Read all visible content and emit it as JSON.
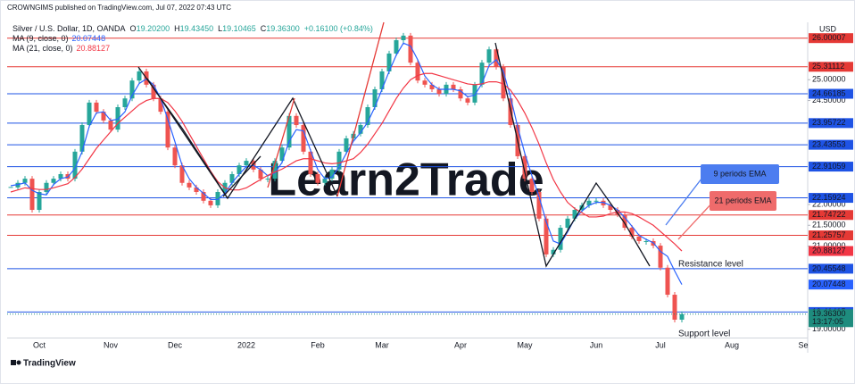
{
  "header": {
    "publisher": "CROWNGIMS published on TradingView.com, Jul 07, 2022 07:43 UTC",
    "currency": "USD"
  },
  "legend": {
    "ohlc": [
      {
        "key": "O",
        "value": "19.20200"
      },
      {
        "key": "H",
        "value": "19.43450"
      },
      {
        "key": "L",
        "value": "19.10465"
      },
      {
        "key": "C",
        "value": "19.36300"
      }
    ],
    "change": "+0.16100 (+0.84%)"
  },
  "chart_data": {
    "type": "candlestick",
    "watermark": "Learn2Trade",
    "categories": [
      null,
      null,
      null,
      null,
      "Oct",
      null,
      null,
      null,
      null,
      null,
      null,
      null,
      null,
      null,
      "Nov",
      null,
      null,
      null,
      null,
      null,
      null,
      null,
      null,
      "Dec",
      null,
      null,
      null,
      null,
      null,
      null,
      null,
      null,
      null,
      "2022",
      null,
      null,
      null,
      null,
      null,
      null,
      null,
      null,
      null,
      "Feb",
      null,
      null,
      null,
      null,
      null,
      null,
      null,
      null,
      "Mar",
      null,
      null,
      null,
      null,
      null,
      null,
      null,
      null,
      null,
      null,
      "Apr",
      null,
      null,
      null,
      null,
      null,
      null,
      null,
      null,
      "May",
      null,
      null,
      null,
      null,
      null,
      null,
      null,
      null,
      null,
      "Jun",
      null,
      null,
      null,
      null,
      null,
      null,
      null,
      null,
      "Jul",
      null,
      null,
      null,
      null,
      null,
      null,
      null,
      null,
      null,
      "Aug",
      null,
      null,
      null,
      null,
      null,
      null,
      null,
      null,
      null,
      "Se"
    ],
    "series": [
      {
        "name": "Silver / U.S. Dollar, 1D, OANDA",
        "up_color": "#26a69a",
        "down_color": "#ef5350",
        "values": [
          22.41,
          22.52,
          22.62,
          21.87,
          22.3,
          22.52,
          22.62,
          22.73,
          22.62,
          23.27,
          23.91,
          24.45,
          24.23,
          24.02,
          23.8,
          24.34,
          24.55,
          24.98,
          25.2,
          24.88,
          24.55,
          24.23,
          23.37,
          22.94,
          22.52,
          22.41,
          22.3,
          22.09,
          21.98,
          22.3,
          22.52,
          22.73,
          22.94,
          23.05,
          22.84,
          22.62,
          22.62,
          23.05,
          23.37,
          24.13,
          23.91,
          23.27,
          22.73,
          22.52,
          22.62,
          22.84,
          23.27,
          23.59,
          23.7,
          23.91,
          24.34,
          24.77,
          25.2,
          25.63,
          25.95,
          26.06,
          25.41,
          24.98,
          24.88,
          24.77,
          24.66,
          24.88,
          24.77,
          24.55,
          24.45,
          24.88,
          25.41,
          25.73,
          25.31,
          24.55,
          23.91,
          23.16,
          22.62,
          22.3,
          21.66,
          20.8,
          20.91,
          21.44,
          21.66,
          21.87,
          21.98,
          22.09,
          22.09,
          21.98,
          21.87,
          21.76,
          21.44,
          21.23,
          21.12,
          21.12,
          21.01,
          20.48,
          19.83,
          19.23,
          19.363,
          null,
          null,
          null,
          null,
          null,
          null,
          null,
          null,
          null,
          null,
          null,
          null,
          null,
          null,
          null,
          null,
          null
        ]
      },
      {
        "name": "MA (9, close, 0)",
        "color": "#2962ff",
        "values": [
          22.45,
          22.48,
          22.52,
          22.34,
          22.26,
          22.23,
          22.48,
          22.62,
          22.66,
          22.87,
          23.27,
          23.88,
          24.2,
          24.23,
          24.02,
          24.05,
          24.23,
          24.62,
          24.91,
          25.02,
          24.88,
          24.55,
          24.05,
          23.51,
          22.94,
          22.62,
          22.41,
          22.27,
          22.12,
          22.12,
          22.27,
          22.52,
          22.73,
          22.91,
          22.94,
          22.84,
          22.69,
          22.76,
          23.01,
          23.52,
          23.8,
          23.77,
          23.3,
          22.84,
          22.62,
          22.66,
          22.91,
          23.23,
          23.52,
          23.73,
          23.98,
          24.34,
          24.77,
          25.2,
          25.59,
          25.88,
          25.81,
          25.48,
          25.09,
          24.88,
          24.77,
          24.77,
          24.77,
          24.73,
          24.59,
          24.63,
          24.91,
          25.34,
          25.48,
          25.2,
          24.59,
          23.87,
          23.23,
          22.69,
          22.19,
          21.59,
          21.12,
          21.05,
          21.34,
          21.66,
          21.84,
          21.98,
          22.05,
          22.05,
          21.98,
          21.87,
          21.69,
          21.48,
          21.26,
          21.16,
          21.08,
          20.87,
          20.75,
          20.4,
          20.07448,
          null,
          null,
          null,
          null,
          null,
          null,
          null,
          null,
          null,
          null,
          null,
          null,
          null,
          null,
          null,
          null,
          null
        ]
      },
      {
        "name": "MA (21, close, 0)",
        "color": "#f23645",
        "values": [
          22.3,
          22.35,
          22.4,
          22.38,
          22.36,
          22.36,
          22.4,
          22.45,
          22.5,
          22.65,
          22.85,
          23.1,
          23.35,
          23.55,
          23.75,
          23.95,
          24.1,
          24.25,
          24.4,
          24.5,
          24.55,
          24.55,
          24.45,
          24.25,
          24.0,
          23.7,
          23.4,
          23.1,
          22.8,
          22.55,
          22.4,
          22.35,
          22.35,
          22.4,
          22.5,
          22.6,
          22.7,
          22.78,
          22.85,
          22.95,
          23.05,
          23.1,
          23.1,
          23.05,
          23.0,
          22.98,
          23.0,
          23.05,
          23.1,
          23.25,
          23.45,
          23.7,
          23.95,
          24.25,
          24.55,
          24.8,
          25.0,
          25.1,
          25.15,
          25.15,
          25.1,
          25.05,
          25.0,
          24.95,
          24.9,
          24.88,
          24.9,
          24.95,
          24.95,
          24.9,
          24.75,
          24.5,
          24.2,
          23.85,
          23.45,
          23.0,
          22.6,
          22.3,
          22.05,
          21.9,
          21.8,
          21.7,
          21.7,
          21.72,
          21.78,
          21.82,
          21.82,
          21.78,
          21.7,
          21.6,
          21.5,
          21.35,
          21.2,
          21.05,
          20.88127,
          null,
          null,
          null,
          null,
          null,
          null,
          null,
          null,
          null,
          null,
          null,
          null,
          null,
          null,
          null,
          null,
          null
        ]
      }
    ],
    "ylim": [
      18.8,
      26.38
    ],
    "yticks": [
      {
        "value": 25,
        "label": "25.00000"
      },
      {
        "value": 24.5,
        "label": "24.50000"
      },
      {
        "value": 22,
        "label": "22.00000"
      },
      {
        "value": 21.5,
        "label": "21.50000"
      },
      {
        "value": 21,
        "label": "21.00000"
      },
      {
        "value": 19,
        "label": "19.00000"
      }
    ],
    "levels": [
      {
        "value": 26.00007,
        "color": "#e53935"
      },
      {
        "value": 25.31112,
        "color": "#e53935"
      },
      {
        "value": 24.66185,
        "color": "#1e53e5"
      },
      {
        "value": 23.95722,
        "color": "#1e53e5"
      },
      {
        "value": 23.43553,
        "color": "#1e53e5"
      },
      {
        "value": 22.91059,
        "color": "#1e53e5"
      },
      {
        "value": 22.15924,
        "color": "#1e53e5"
      },
      {
        "value": 21.74722,
        "color": "#e53935"
      },
      {
        "value": 21.25757,
        "color": "#e53935"
      },
      {
        "value": 20.45548,
        "color": "#1e53e5"
      },
      {
        "value": 19.41415,
        "color": "#1e53e5"
      }
    ],
    "last_price": {
      "value": 19.363,
      "label": "19.36300",
      "countdown": "13:17:05",
      "color": "#1e8c7e"
    },
    "annotations": [
      {
        "text": "9 periods EMA",
        "color": "#4c7df0"
      },
      {
        "text": "21 periods EMA",
        "color": "#ef6b6b"
      },
      {
        "text": "Resistance level",
        "color": "#e53935"
      },
      {
        "text": "Support level",
        "color": "#2962ff"
      }
    ]
  },
  "footer": {
    "brand": "TradingView"
  }
}
